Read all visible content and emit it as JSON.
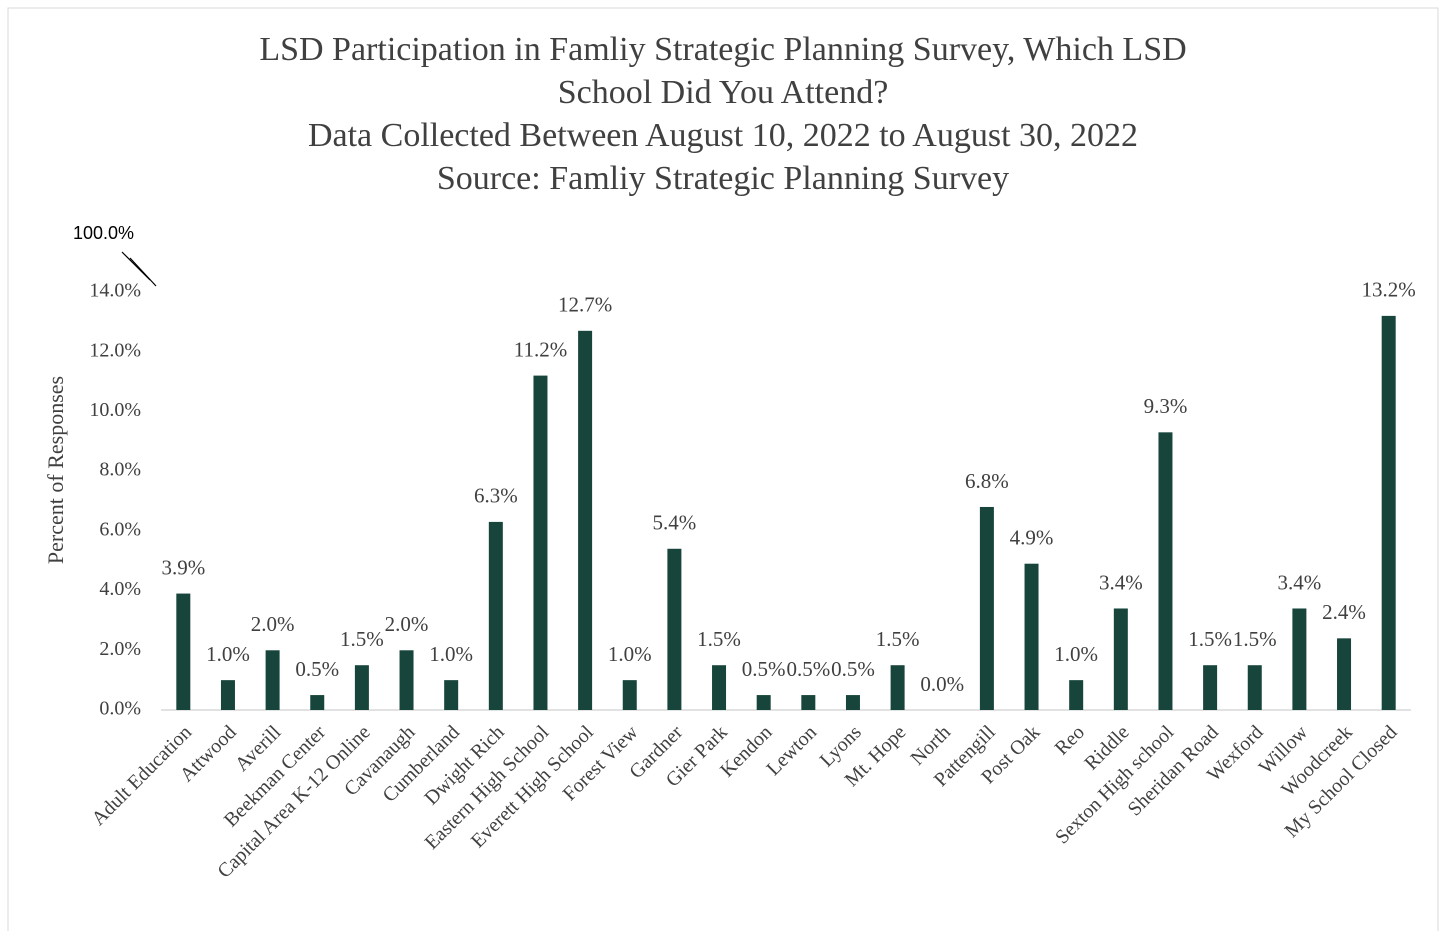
{
  "chart_data": {
    "type": "bar",
    "title": [
      "LSD Participation in Famliy Strategic Planning Survey, Which LSD",
      "School Did You Attend?",
      "Data Collected Between August 10, 2022 to August 30, 2022",
      "Source: Famliy Strategic Planning Survey"
    ],
    "y_label": "Percent of Responses",
    "categories": [
      "Adult Education",
      "Attwood",
      "Averill",
      "Beekman Center",
      "Capital Area K-12 Online",
      "Cavanaugh",
      "Cumberland",
      "Dwight Rich",
      "Eastern High School",
      "Everett High School",
      "Forest View",
      "Gardner",
      "Gier Park",
      "Kendon",
      "Lewton",
      "Lyons",
      "Mt. Hope",
      "North",
      "Pattengill",
      "Post Oak",
      "Reo",
      "Riddle",
      "Sexton High school",
      "Sheridan Road",
      "Wexford",
      "Willow",
      "Woodcreek",
      "My School Closed"
    ],
    "values": [
      3.9,
      1.0,
      2.0,
      0.5,
      1.5,
      2.0,
      1.0,
      6.3,
      11.2,
      12.7,
      1.0,
      5.4,
      1.5,
      0.5,
      0.5,
      0.5,
      1.5,
      0.0,
      6.8,
      4.9,
      1.0,
      3.4,
      9.3,
      1.5,
      1.5,
      3.4,
      2.4,
      13.2
    ],
    "value_labels": [
      "3.9%",
      "1.0%",
      "2.0%",
      "0.5%",
      "1.5%",
      "2.0%",
      "1.0%",
      "6.3%",
      "11.2%",
      "12.7%",
      "1.0%",
      "5.4%",
      "1.5%",
      "0.5%",
      "0.5%",
      "0.5%",
      "1.5%",
      "0.0%",
      "6.8%",
      "4.9%",
      "1.0%",
      "3.4%",
      "9.3%",
      "1.5%",
      "1.5%",
      "3.4%",
      "2.4%",
      "13.2%"
    ],
    "color": "#17453b",
    "ylim": [
      0,
      14
    ],
    "yticks": [
      {
        "value": 0,
        "label": "0.0%"
      },
      {
        "value": 2,
        "label": "2.0%"
      },
      {
        "value": 4,
        "label": "4.0%"
      },
      {
        "value": 6,
        "label": "6.0%"
      },
      {
        "value": 8,
        "label": "8.0%"
      },
      {
        "value": 10,
        "label": "10.0%"
      },
      {
        "value": 12,
        "label": "12.0%"
      },
      {
        "value": 14,
        "label": "14.0%"
      }
    ],
    "y_break_tick": {
      "value": 100,
      "label": "100.0%"
    },
    "grid": false
  }
}
